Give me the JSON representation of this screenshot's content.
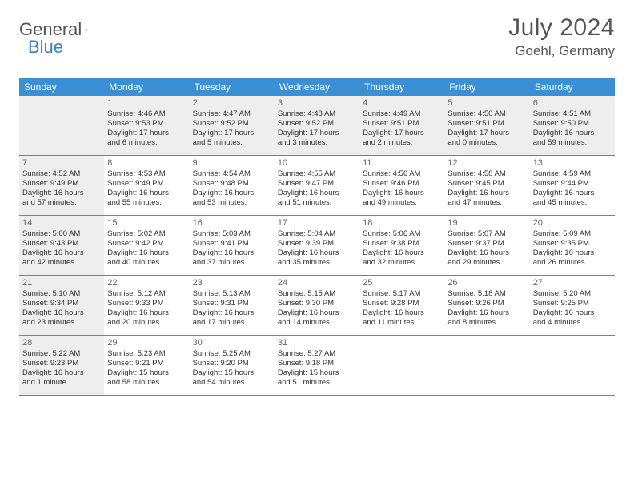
{
  "logo": {
    "word1": "General",
    "word2": "Blue"
  },
  "title": {
    "month": "July 2024",
    "location": "Goehl, Germany"
  },
  "columns": [
    "Sunday",
    "Monday",
    "Tuesday",
    "Wednesday",
    "Thursday",
    "Friday",
    "Saturday"
  ],
  "colors": {
    "header_bg": "#3b8fd4",
    "header_text": "#ffffff",
    "shade_bg": "#eeeeee",
    "border": "#3b8fd4",
    "text": "#333333",
    "title_color": "#555555",
    "logo_blue": "#3b7fc4"
  },
  "weeks": [
    [
      {
        "num": "",
        "shade": true,
        "sunrise": "",
        "sunset": "",
        "daylight1": "",
        "daylight2": ""
      },
      {
        "num": "1",
        "shade": true,
        "sunrise": "Sunrise: 4:46 AM",
        "sunset": "Sunset: 9:53 PM",
        "daylight1": "Daylight: 17 hours",
        "daylight2": "and 6 minutes."
      },
      {
        "num": "2",
        "shade": true,
        "sunrise": "Sunrise: 4:47 AM",
        "sunset": "Sunset: 9:52 PM",
        "daylight1": "Daylight: 17 hours",
        "daylight2": "and 5 minutes."
      },
      {
        "num": "3",
        "shade": true,
        "sunrise": "Sunrise: 4:48 AM",
        "sunset": "Sunset: 9:52 PM",
        "daylight1": "Daylight: 17 hours",
        "daylight2": "and 3 minutes."
      },
      {
        "num": "4",
        "shade": true,
        "sunrise": "Sunrise: 4:49 AM",
        "sunset": "Sunset: 9:51 PM",
        "daylight1": "Daylight: 17 hours",
        "daylight2": "and 2 minutes."
      },
      {
        "num": "5",
        "shade": true,
        "sunrise": "Sunrise: 4:50 AM",
        "sunset": "Sunset: 9:51 PM",
        "daylight1": "Daylight: 17 hours",
        "daylight2": "and 0 minutes."
      },
      {
        "num": "6",
        "shade": true,
        "sunrise": "Sunrise: 4:51 AM",
        "sunset": "Sunset: 9:50 PM",
        "daylight1": "Daylight: 16 hours",
        "daylight2": "and 59 minutes."
      }
    ],
    [
      {
        "num": "7",
        "shade": true,
        "sunrise": "Sunrise: 4:52 AM",
        "sunset": "Sunset: 9:49 PM",
        "daylight1": "Daylight: 16 hours",
        "daylight2": "and 57 minutes."
      },
      {
        "num": "8",
        "shade": false,
        "sunrise": "Sunrise: 4:53 AM",
        "sunset": "Sunset: 9:49 PM",
        "daylight1": "Daylight: 16 hours",
        "daylight2": "and 55 minutes."
      },
      {
        "num": "9",
        "shade": false,
        "sunrise": "Sunrise: 4:54 AM",
        "sunset": "Sunset: 9:48 PM",
        "daylight1": "Daylight: 16 hours",
        "daylight2": "and 53 minutes."
      },
      {
        "num": "10",
        "shade": false,
        "sunrise": "Sunrise: 4:55 AM",
        "sunset": "Sunset: 9:47 PM",
        "daylight1": "Daylight: 16 hours",
        "daylight2": "and 51 minutes."
      },
      {
        "num": "11",
        "shade": false,
        "sunrise": "Sunrise: 4:56 AM",
        "sunset": "Sunset: 9:46 PM",
        "daylight1": "Daylight: 16 hours",
        "daylight2": "and 49 minutes."
      },
      {
        "num": "12",
        "shade": false,
        "sunrise": "Sunrise: 4:58 AM",
        "sunset": "Sunset: 9:45 PM",
        "daylight1": "Daylight: 16 hours",
        "daylight2": "and 47 minutes."
      },
      {
        "num": "13",
        "shade": false,
        "sunrise": "Sunrise: 4:59 AM",
        "sunset": "Sunset: 9:44 PM",
        "daylight1": "Daylight: 16 hours",
        "daylight2": "and 45 minutes."
      }
    ],
    [
      {
        "num": "14",
        "shade": true,
        "sunrise": "Sunrise: 5:00 AM",
        "sunset": "Sunset: 9:43 PM",
        "daylight1": "Daylight: 16 hours",
        "daylight2": "and 42 minutes."
      },
      {
        "num": "15",
        "shade": false,
        "sunrise": "Sunrise: 5:02 AM",
        "sunset": "Sunset: 9:42 PM",
        "daylight1": "Daylight: 16 hours",
        "daylight2": "and 40 minutes."
      },
      {
        "num": "16",
        "shade": false,
        "sunrise": "Sunrise: 5:03 AM",
        "sunset": "Sunset: 9:41 PM",
        "daylight1": "Daylight: 16 hours",
        "daylight2": "and 37 minutes."
      },
      {
        "num": "17",
        "shade": false,
        "sunrise": "Sunrise: 5:04 AM",
        "sunset": "Sunset: 9:39 PM",
        "daylight1": "Daylight: 16 hours",
        "daylight2": "and 35 minutes."
      },
      {
        "num": "18",
        "shade": false,
        "sunrise": "Sunrise: 5:06 AM",
        "sunset": "Sunset: 9:38 PM",
        "daylight1": "Daylight: 16 hours",
        "daylight2": "and 32 minutes."
      },
      {
        "num": "19",
        "shade": false,
        "sunrise": "Sunrise: 5:07 AM",
        "sunset": "Sunset: 9:37 PM",
        "daylight1": "Daylight: 16 hours",
        "daylight2": "and 29 minutes."
      },
      {
        "num": "20",
        "shade": false,
        "sunrise": "Sunrise: 5:09 AM",
        "sunset": "Sunset: 9:35 PM",
        "daylight1": "Daylight: 16 hours",
        "daylight2": "and 26 minutes."
      }
    ],
    [
      {
        "num": "21",
        "shade": true,
        "sunrise": "Sunrise: 5:10 AM",
        "sunset": "Sunset: 9:34 PM",
        "daylight1": "Daylight: 16 hours",
        "daylight2": "and 23 minutes."
      },
      {
        "num": "22",
        "shade": false,
        "sunrise": "Sunrise: 5:12 AM",
        "sunset": "Sunset: 9:33 PM",
        "daylight1": "Daylight: 16 hours",
        "daylight2": "and 20 minutes."
      },
      {
        "num": "23",
        "shade": false,
        "sunrise": "Sunrise: 5:13 AM",
        "sunset": "Sunset: 9:31 PM",
        "daylight1": "Daylight: 16 hours",
        "daylight2": "and 17 minutes."
      },
      {
        "num": "24",
        "shade": false,
        "sunrise": "Sunrise: 5:15 AM",
        "sunset": "Sunset: 9:30 PM",
        "daylight1": "Daylight: 16 hours",
        "daylight2": "and 14 minutes."
      },
      {
        "num": "25",
        "shade": false,
        "sunrise": "Sunrise: 5:17 AM",
        "sunset": "Sunset: 9:28 PM",
        "daylight1": "Daylight: 16 hours",
        "daylight2": "and 11 minutes."
      },
      {
        "num": "26",
        "shade": false,
        "sunrise": "Sunrise: 5:18 AM",
        "sunset": "Sunset: 9:26 PM",
        "daylight1": "Daylight: 16 hours",
        "daylight2": "and 8 minutes."
      },
      {
        "num": "27",
        "shade": false,
        "sunrise": "Sunrise: 5:20 AM",
        "sunset": "Sunset: 9:25 PM",
        "daylight1": "Daylight: 16 hours",
        "daylight2": "and 4 minutes."
      }
    ],
    [
      {
        "num": "28",
        "shade": true,
        "sunrise": "Sunrise: 5:22 AM",
        "sunset": "Sunset: 9:23 PM",
        "daylight1": "Daylight: 16 hours",
        "daylight2": "and 1 minute."
      },
      {
        "num": "29",
        "shade": false,
        "sunrise": "Sunrise: 5:23 AM",
        "sunset": "Sunset: 9:21 PM",
        "daylight1": "Daylight: 15 hours",
        "daylight2": "and 58 minutes."
      },
      {
        "num": "30",
        "shade": false,
        "sunrise": "Sunrise: 5:25 AM",
        "sunset": "Sunset: 9:20 PM",
        "daylight1": "Daylight: 15 hours",
        "daylight2": "and 54 minutes."
      },
      {
        "num": "31",
        "shade": false,
        "sunrise": "Sunrise: 5:27 AM",
        "sunset": "Sunset: 9:18 PM",
        "daylight1": "Daylight: 15 hours",
        "daylight2": "and 51 minutes."
      },
      {
        "num": "",
        "shade": false,
        "sunrise": "",
        "sunset": "",
        "daylight1": "",
        "daylight2": ""
      },
      {
        "num": "",
        "shade": false,
        "sunrise": "",
        "sunset": "",
        "daylight1": "",
        "daylight2": ""
      },
      {
        "num": "",
        "shade": false,
        "sunrise": "",
        "sunset": "",
        "daylight1": "",
        "daylight2": ""
      }
    ]
  ]
}
